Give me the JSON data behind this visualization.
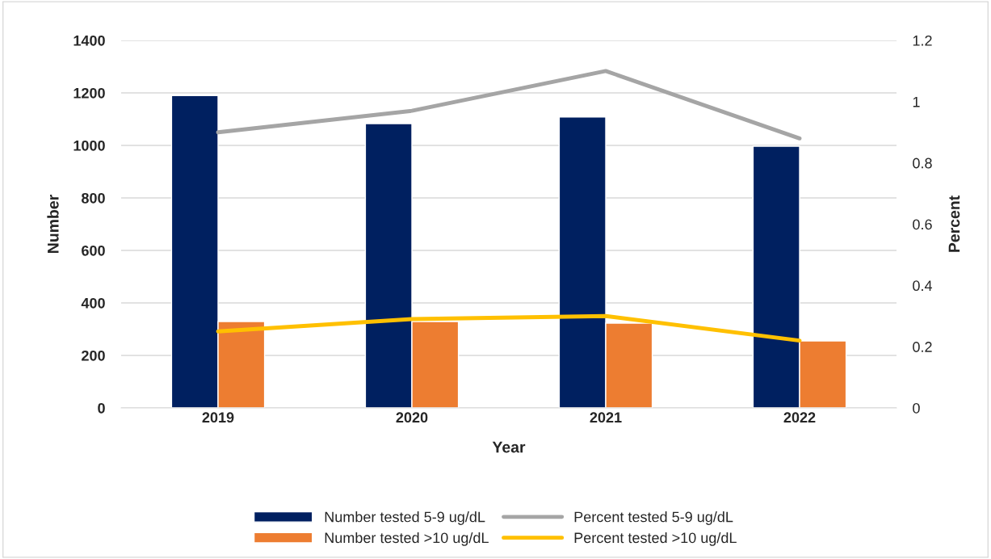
{
  "chart_data": {
    "type": "bar",
    "xlabel": "Year",
    "ylabel": "Number",
    "y2label": "Percent",
    "categories": [
      "2019",
      "2020",
      "2021",
      "2022"
    ],
    "series": [
      {
        "name": "Number tested 5-9 ug/dL",
        "color": "#002060",
        "values": [
          1190,
          1083,
          1108,
          997
        ]
      },
      {
        "name": "Number tested >10 ug/dL",
        "color": "#ed7d31",
        "values": [
          329,
          329,
          323,
          255
        ]
      },
      {
        "name": "Percent tested 5-9 ug/dL",
        "type": "line",
        "axis": "y2",
        "color": "#a5a5a5",
        "values": [
          0.9,
          0.97,
          1.1,
          0.88
        ]
      },
      {
        "name": "Percent tested >10 ug/dL",
        "type": "line",
        "axis": "y2",
        "color": "#ffc000",
        "values": [
          0.25,
          0.29,
          0.3,
          0.22
        ]
      }
    ],
    "ylim": [
      0,
      1400
    ],
    "yticks": [
      0,
      200,
      400,
      600,
      800,
      1000,
      1200,
      1400
    ],
    "y2lim": [
      0,
      1.2
    ],
    "y2ticks": [
      0,
      0.2,
      0.4,
      0.6,
      0.8,
      1,
      1.2
    ],
    "grid": "y",
    "legend": "bottom",
    "marker": "none",
    "line_style": "solid"
  }
}
